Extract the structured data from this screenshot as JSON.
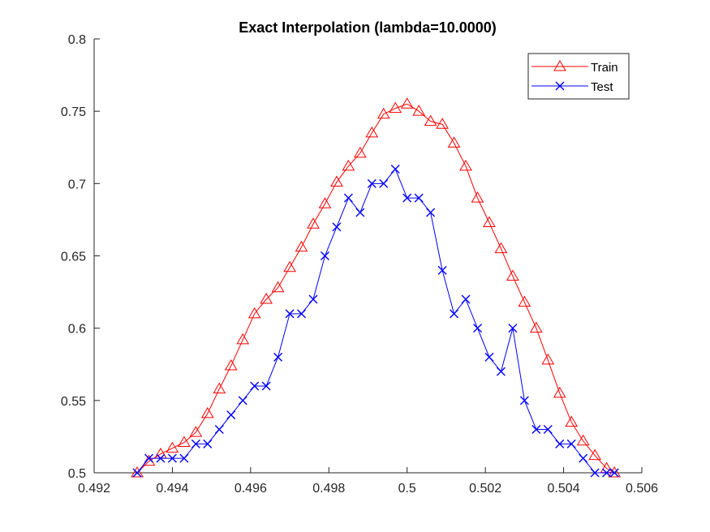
{
  "chart_data": {
    "type": "line",
    "title": "Exact Interpolation (lambda=10.0000)",
    "xlabel": "",
    "ylabel": "",
    "xlim": [
      0.492,
      0.506
    ],
    "ylim": [
      0.5,
      0.8
    ],
    "xticks": [
      0.492,
      0.494,
      0.496,
      0.498,
      0.5,
      0.502,
      0.504,
      0.506
    ],
    "xtick_labels": [
      "0.492",
      "0.494",
      "0.496",
      "0.498",
      "0.5",
      "0.502",
      "0.504",
      "0.506"
    ],
    "yticks": [
      0.5,
      0.55,
      0.6,
      0.65,
      0.7,
      0.75,
      0.8
    ],
    "ytick_labels": [
      "0.5",
      "0.55",
      "0.6",
      "0.65",
      "0.7",
      "0.75",
      "0.8"
    ],
    "grid": false,
    "legend_position": "top-right",
    "series": [
      {
        "name": "Train",
        "color": "#ff0000",
        "marker": "triangle",
        "x": [
          0.4931,
          0.4934,
          0.4937,
          0.494,
          0.4943,
          0.4946,
          0.4949,
          0.4952,
          0.4955,
          0.4958,
          0.4961,
          0.4964,
          0.4967,
          0.497,
          0.4973,
          0.4976,
          0.4979,
          0.4982,
          0.4985,
          0.4988,
          0.4991,
          0.4994,
          0.4997,
          0.5,
          0.5003,
          0.5006,
          0.5009,
          0.5012,
          0.5015,
          0.5018,
          0.5021,
          0.5024,
          0.5027,
          0.503,
          0.5033,
          0.5036,
          0.5039,
          0.5042,
          0.5045,
          0.5048,
          0.5051,
          0.5053
        ],
        "y": [
          0.5,
          0.508,
          0.513,
          0.517,
          0.521,
          0.528,
          0.541,
          0.558,
          0.574,
          0.592,
          0.61,
          0.62,
          0.628,
          0.642,
          0.656,
          0.672,
          0.686,
          0.701,
          0.712,
          0.721,
          0.735,
          0.748,
          0.752,
          0.755,
          0.75,
          0.743,
          0.741,
          0.728,
          0.712,
          0.69,
          0.673,
          0.655,
          0.636,
          0.618,
          0.6,
          0.578,
          0.555,
          0.535,
          0.522,
          0.512,
          0.503,
          0.5
        ]
      },
      {
        "name": "Test",
        "color": "#0000ff",
        "marker": "x",
        "x": [
          0.4931,
          0.4934,
          0.4937,
          0.494,
          0.4943,
          0.4946,
          0.4949,
          0.4952,
          0.4955,
          0.4958,
          0.4961,
          0.4964,
          0.4967,
          0.497,
          0.4973,
          0.4976,
          0.4979,
          0.4982,
          0.4985,
          0.4988,
          0.4991,
          0.4994,
          0.4997,
          0.5,
          0.5003,
          0.5006,
          0.5009,
          0.5012,
          0.5015,
          0.5018,
          0.5021,
          0.5024,
          0.5027,
          0.503,
          0.5033,
          0.5036,
          0.5039,
          0.5042,
          0.5045,
          0.5048,
          0.5051,
          0.5053
        ],
        "y": [
          0.5,
          0.51,
          0.51,
          0.51,
          0.51,
          0.52,
          0.52,
          0.53,
          0.54,
          0.55,
          0.56,
          0.56,
          0.58,
          0.61,
          0.61,
          0.62,
          0.65,
          0.67,
          0.69,
          0.68,
          0.7,
          0.7,
          0.71,
          0.69,
          0.69,
          0.68,
          0.64,
          0.61,
          0.62,
          0.6,
          0.58,
          0.57,
          0.6,
          0.55,
          0.53,
          0.53,
          0.52,
          0.52,
          0.51,
          0.5,
          0.5,
          0.5
        ]
      }
    ]
  }
}
